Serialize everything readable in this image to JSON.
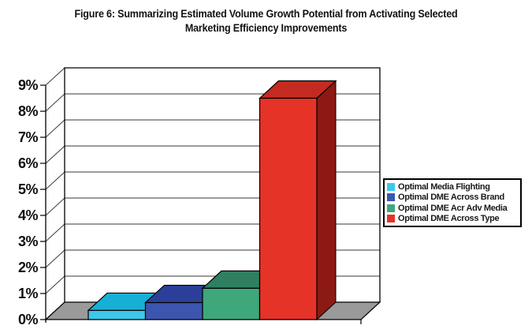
{
  "title": {
    "line1": "Figure 6: Summarizing Estimated Volume Growth Potential from Activating Selected",
    "line2": "Marketing Efficiency Improvements"
  },
  "chart_data": {
    "type": "bar",
    "projection": "3d",
    "title": "Figure 6: Summarizing Estimated Volume Growth Potential from Activating Selected Marketing Efficiency Improvements",
    "ylabel": "",
    "xlabel": "",
    "ylim": [
      0,
      9
    ],
    "ytick_step": 1,
    "ytick_format": "{v}%",
    "grid": true,
    "legend_position": "right",
    "wall_color": "#FFFFFF",
    "floor_color": "#9A9A9A",
    "grid_color": "#3A3A3A",
    "axis_color": "#000000",
    "categories": [
      ""
    ],
    "series": [
      {
        "name": "Optimal Media Flighting",
        "value": 0.35,
        "color": {
          "front": "#3CC8EA",
          "top": "#18AFD6",
          "side": "#0F92B8"
        }
      },
      {
        "name": "Optimal DME Across Brand",
        "value": 0.65,
        "color": {
          "front": "#3C55AE",
          "top": "#2B3F98",
          "side": "#1F2C6E"
        }
      },
      {
        "name": "Optimal DME Acr Adv Media",
        "value": 1.2,
        "color": {
          "front": "#3EA87B",
          "top": "#2E8060",
          "side": "#226349"
        }
      },
      {
        "name": "Optimal DME Across Type",
        "value": 8.5,
        "color": {
          "front": "#E63328",
          "top": "#C52A20",
          "side": "#8C1A13"
        }
      }
    ]
  }
}
